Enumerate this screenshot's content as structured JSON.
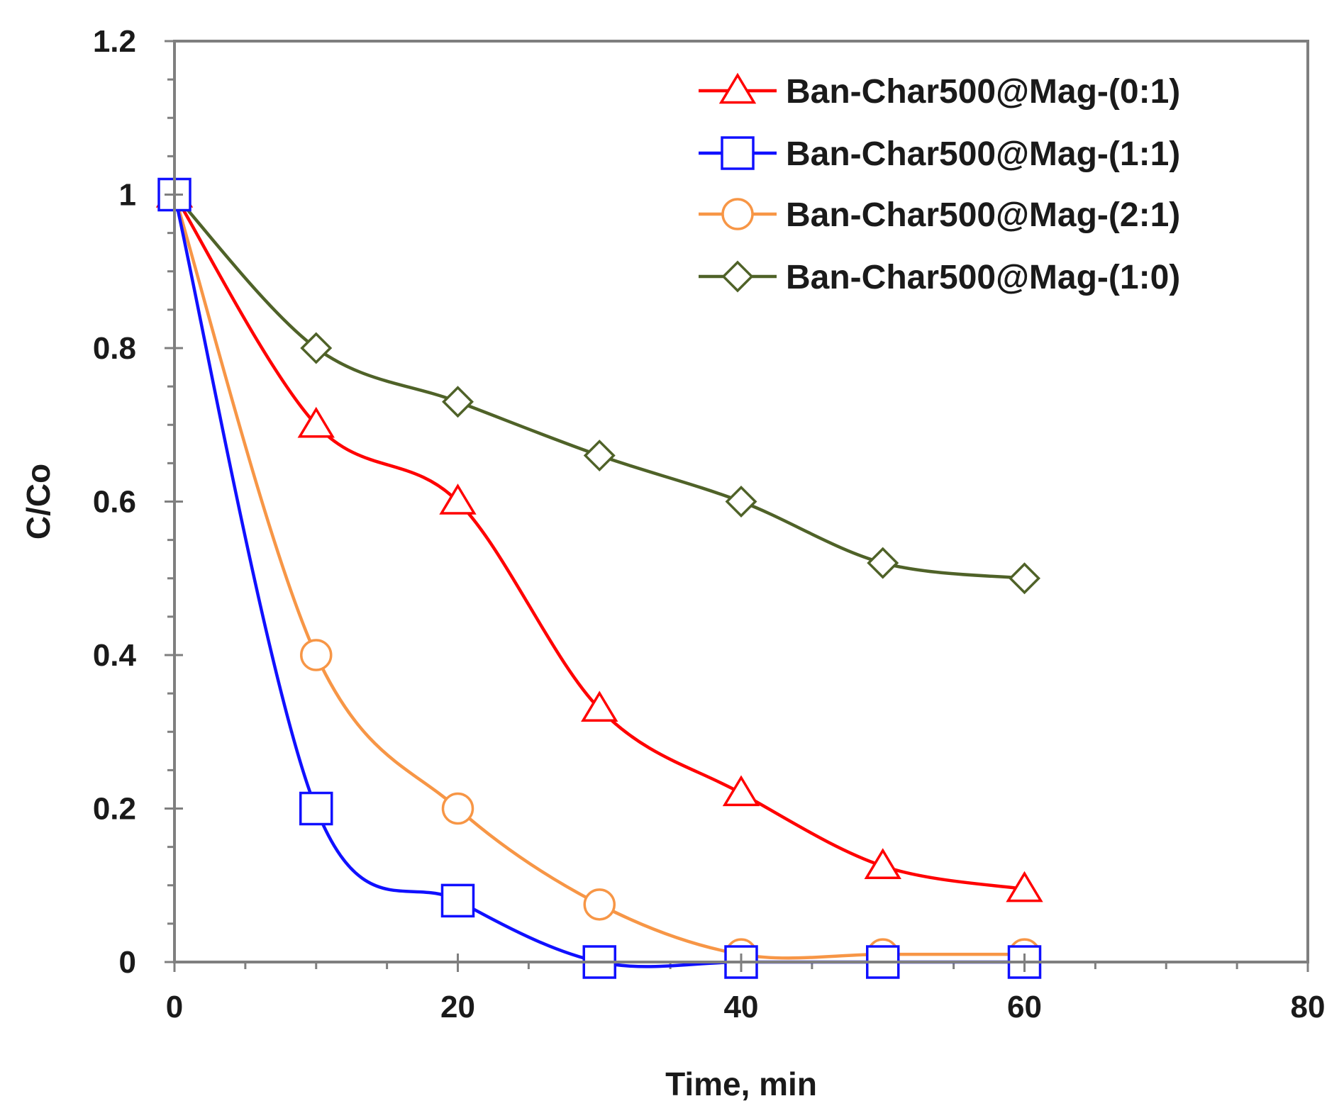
{
  "chart_data": {
    "type": "line",
    "title": "",
    "xlabel": "Time, min",
    "ylabel": "C/Co",
    "xlim": [
      0,
      80
    ],
    "ylim": [
      0,
      1.2
    ],
    "x_ticks": [
      0,
      20,
      40,
      60,
      80
    ],
    "y_ticks": [
      0,
      0.2,
      0.4,
      0.6,
      0.8,
      1,
      1.2
    ],
    "x_tick_labels": [
      "0",
      "20",
      "40",
      "60",
      "80"
    ],
    "y_tick_labels": [
      "0",
      "0.2",
      "0.4",
      "0.6",
      "0.8",
      "1",
      "1.2"
    ],
    "grid": false,
    "legend_position": "top-right",
    "x": [
      0,
      10,
      20,
      30,
      40,
      50,
      60
    ],
    "series": [
      {
        "name": "Ban-Char500@Mag-(0:1)",
        "color": "#ff0000",
        "marker": "triangle",
        "values": [
          1.0,
          0.7,
          0.6,
          0.33,
          0.22,
          0.125,
          0.095
        ]
      },
      {
        "name": "Ban-Char500@Mag-(1:1)",
        "color": "#1010ff",
        "marker": "square",
        "values": [
          1.0,
          0.2,
          0.08,
          0.0,
          0.0,
          0.0,
          0.0
        ]
      },
      {
        "name": "Ban-Char500@Mag-(2:1)",
        "color": "#f79646",
        "marker": "circle",
        "values": [
          1.0,
          0.4,
          0.2,
          0.075,
          0.01,
          0.01,
          0.01
        ]
      },
      {
        "name": "Ban-Char500@Mag-(1:0)",
        "color": "#4f6228",
        "marker": "diamond",
        "values": [
          1.0,
          0.8,
          0.73,
          0.66,
          0.6,
          0.52,
          0.5
        ]
      }
    ]
  }
}
